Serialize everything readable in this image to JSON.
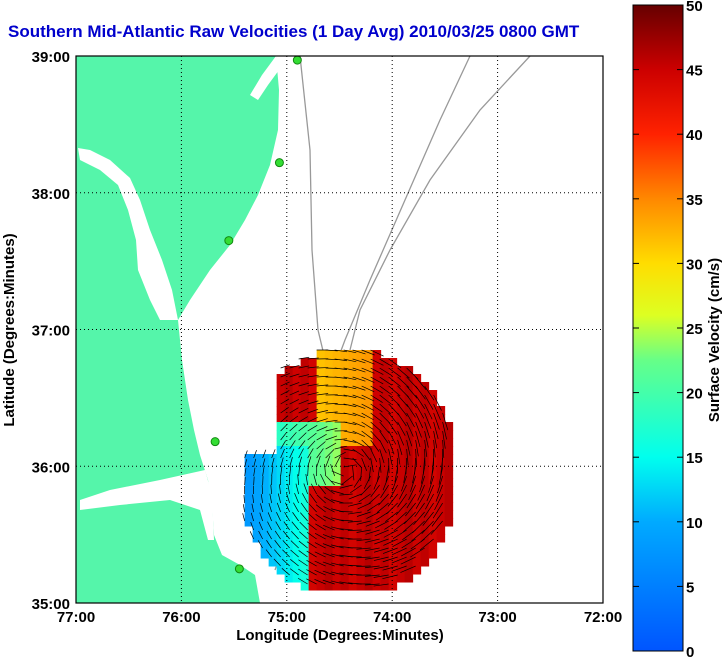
{
  "chart_data": {
    "type": "heatmap",
    "title": "Southern Mid-Atlantic Raw Velocities (1 Day Avg) 2010/03/25 0800 GMT",
    "xlabel": "Longitude (Degrees:Minutes)",
    "ylabel": "Latitude (Degrees:Minutes)",
    "x_ticks": [
      {
        "value": -77,
        "label": "77:00"
      },
      {
        "value": -76,
        "label": "76:00"
      },
      {
        "value": -75,
        "label": "75:00"
      },
      {
        "value": -74,
        "label": "74:00"
      },
      {
        "value": -73,
        "label": "73:00"
      },
      {
        "value": -72,
        "label": "72:00"
      }
    ],
    "y_ticks": [
      {
        "value": 35,
        "label": "35:00"
      },
      {
        "value": 36,
        "label": "36:00"
      },
      {
        "value": 37,
        "label": "37:00"
      },
      {
        "value": 38,
        "label": "38:00"
      },
      {
        "value": 39,
        "label": "39:00"
      }
    ],
    "xlim": [
      -77,
      -72
    ],
    "ylim": [
      35,
      39
    ],
    "grid": "dotted",
    "colorbar": {
      "label": "Surface Velocity (cm/s)",
      "range": [
        0,
        50
      ],
      "ticks": [
        0,
        5,
        10,
        15,
        20,
        25,
        30,
        35,
        40,
        45,
        50
      ],
      "colormap": "jet"
    },
    "land_color": "#55f5aa",
    "water_color": "#ffffff",
    "station_color": "#33dd33",
    "stations": [
      {
        "lon": -74.9,
        "lat": 38.97
      },
      {
        "lon": -75.07,
        "lat": 38.22
      },
      {
        "lon": -75.55,
        "lat": 37.65
      },
      {
        "lon": -75.68,
        "lat": 36.18
      },
      {
        "lon": -75.45,
        "lat": 35.25
      }
    ],
    "velocity_field_extent": {
      "lon": [
        -75.4,
        -73.5
      ],
      "lat": [
        35.1,
        36.85
      ]
    }
  }
}
